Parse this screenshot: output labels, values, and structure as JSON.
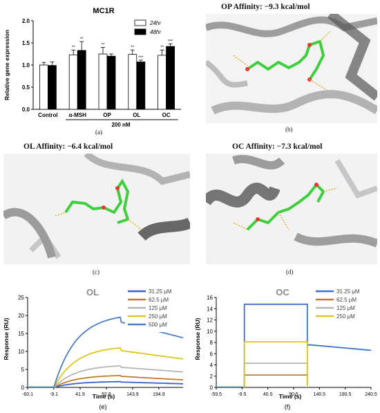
{
  "panels": {
    "a": {
      "label": "(a)"
    },
    "b": {
      "label": "(b)",
      "title": "OP Affinity: −9.3 kcal/mol"
    },
    "c": {
      "label": "(c)",
      "title": "OL Affinity: −6.4 kcal/mol"
    },
    "d": {
      "label": "(d)",
      "title": "OC Affinity: −7.3 kcal/mol"
    },
    "e": {
      "label": "(e)"
    },
    "f": {
      "label": "(f)"
    }
  },
  "chart_data": [
    {
      "id": "a",
      "type": "bar",
      "title": "MC1R",
      "ylabel": "Relative gene expression",
      "ylim": [
        0,
        2.0
      ],
      "yticks": [
        0.0,
        0.5,
        1.0,
        1.5,
        2.0
      ],
      "categories": [
        "Control",
        "α-MSH",
        "OP",
        "OL",
        "OC"
      ],
      "group_label": "200 nM",
      "legend_position": "top-right",
      "series": [
        {
          "name": "24hr",
          "color": "#ffffff",
          "values": [
            1.0,
            1.23,
            1.25,
            1.24,
            1.22
          ],
          "errors": [
            0.06,
            0.11,
            0.15,
            0.1,
            0.12
          ],
          "significance": [
            "",
            "**",
            "**",
            "**",
            "**"
          ]
        },
        {
          "name": "48hr",
          "color": "#000000",
          "values": [
            0.99,
            1.33,
            1.2,
            1.07,
            1.42
          ],
          "errors": [
            0.08,
            0.2,
            0.05,
            0.04,
            0.06
          ],
          "significance": [
            "",
            "**",
            "",
            "***",
            "***"
          ]
        }
      ]
    },
    {
      "id": "e",
      "type": "line",
      "title": "OL",
      "xlabel": "Time (s)",
      "ylabel": "Response (RU)",
      "xlim": [
        -60.1,
        242
      ],
      "ylim": [
        0,
        25
      ],
      "xticks": [
        -60.1,
        -9.1,
        41.9,
        92.9,
        143.9,
        194.9
      ],
      "yticks": [
        0,
        5,
        10,
        15,
        20,
        25
      ],
      "legend_position": "top-right",
      "series": [
        {
          "name": "31.25 μM",
          "color": "#3a5fc8",
          "plateau": 1.6,
          "end": 1.0
        },
        {
          "name": "62.5 μM",
          "color": "#c07a2e",
          "plateau": 3.3,
          "end": 2.1
        },
        {
          "name": "125 μM",
          "color": "#b5b5b5",
          "plateau": 6.0,
          "end": 4.3
        },
        {
          "name": "250 μM",
          "color": "#e2c51a",
          "plateau": 11.0,
          "end": 7.9
        },
        {
          "name": "500 μM",
          "color": "#4a7dc9",
          "plateau": 19.5,
          "end": 13.8
        }
      ],
      "injection_start": -9.1,
      "injection_end": 120
    },
    {
      "id": "f",
      "type": "line",
      "title": "OC",
      "xlabel": "Time (s)",
      "ylabel": "Response (RU)",
      "xlim": [
        -59.5,
        240.5
      ],
      "ylim": [
        0,
        16
      ],
      "xticks": [
        -59.5,
        -9.5,
        40.5,
        90.5,
        140.5,
        190.5,
        240.5
      ],
      "yticks": [
        0,
        2,
        4,
        6,
        8,
        10,
        12,
        14,
        16
      ],
      "legend_position": "top-right",
      "series": [
        {
          "name": "31.25 μM",
          "color": "#3a6fd0",
          "plateau": 14.8,
          "end": 6.6
        },
        {
          "name": "62.5 μM",
          "color": "#c07a2e",
          "plateau": 2.2,
          "end": null
        },
        {
          "name": "125 μM",
          "color": "#b5b5b5",
          "plateau": 4.3,
          "end": null
        },
        {
          "name": "250 μM",
          "color": "#e2c51a",
          "plateau": 8.1,
          "end": null
        }
      ],
      "injection_start": -5,
      "injection_end": 117
    }
  ]
}
